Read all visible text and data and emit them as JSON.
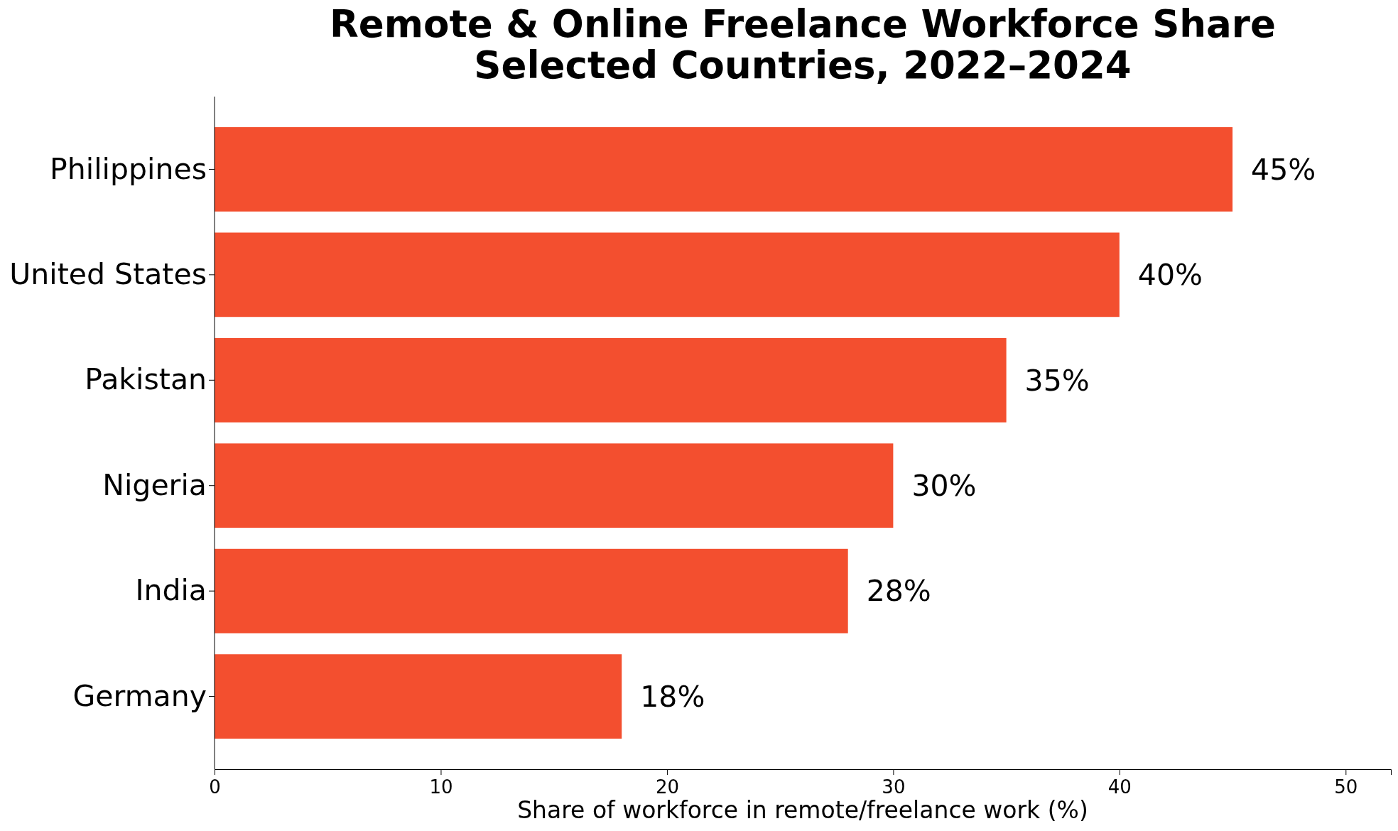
{
  "chart_data": {
    "type": "bar",
    "orientation": "horizontal",
    "title": "Remote & Online Freelance Workforce Share\nSelected Countries, 2022–2024",
    "xlabel": "Share of workforce in remote/freelance work (%)",
    "categories": [
      "Philippines",
      "United States",
      "Pakistan",
      "Nigeria",
      "India",
      "Germany"
    ],
    "values": [
      45,
      40,
      35,
      30,
      28,
      18
    ],
    "value_labels": [
      "45%",
      "40%",
      "35%",
      "30%",
      "28%",
      "18%"
    ],
    "color": "#f34f2f",
    "xlim": [
      0,
      52
    ],
    "xticks": [
      0,
      10,
      20,
      30,
      40,
      50
    ],
    "grid": false
  }
}
